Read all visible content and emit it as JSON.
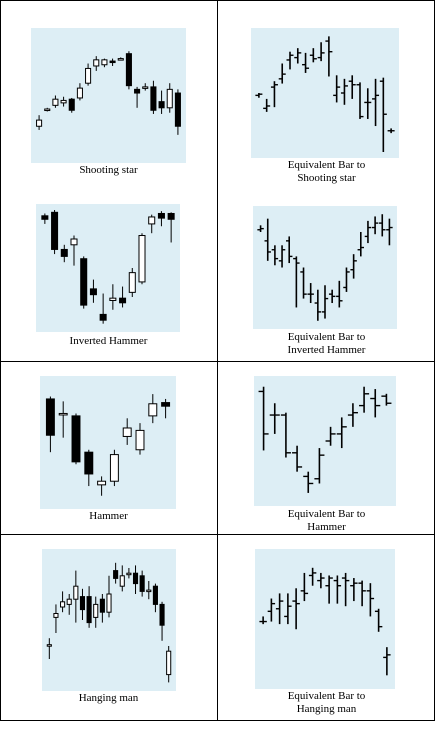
{
  "panels": [
    {
      "id": "shooting-star-candle",
      "caption": [
        "Shooting star"
      ],
      "kind": "candle",
      "bg": "#ddeef5",
      "ylim": [
        0,
        100
      ],
      "bars": [
        {
          "o": 25,
          "c": 30,
          "h": 34,
          "l": 22
        },
        {
          "o": 38,
          "c": 39,
          "h": 40,
          "l": 37
        },
        {
          "o": 42,
          "c": 47,
          "h": 50,
          "l": 40
        },
        {
          "o": 44,
          "c": 46,
          "h": 49,
          "l": 41
        },
        {
          "o": 47,
          "c": 38,
          "h": 48,
          "l": 36
        },
        {
          "o": 48,
          "c": 56,
          "h": 60,
          "l": 46
        },
        {
          "o": 60,
          "c": 72,
          "h": 76,
          "l": 58
        },
        {
          "o": 74,
          "c": 79,
          "h": 82,
          "l": 70
        },
        {
          "o": 75,
          "c": 79,
          "h": 80,
          "l": 73
        },
        {
          "o": 78,
          "c": 77,
          "h": 80,
          "l": 74
        },
        {
          "o": 80,
          "c": 80,
          "h": 81,
          "l": 79
        },
        {
          "o": 84,
          "c": 58,
          "h": 86,
          "l": 55
        },
        {
          "o": 55,
          "c": 52,
          "h": 57,
          "l": 40
        },
        {
          "o": 57,
          "c": 57,
          "h": 60,
          "l": 54
        },
        {
          "o": 57,
          "c": 38,
          "h": 62,
          "l": 35
        },
        {
          "o": 45,
          "c": 40,
          "h": 54,
          "l": 35
        },
        {
          "o": 40,
          "c": 55,
          "h": 60,
          "l": 36
        },
        {
          "o": 52,
          "c": 25,
          "h": 55,
          "l": 18
        }
      ]
    },
    {
      "id": "shooting-star-bar",
      "caption": [
        "Equivalent Bar to",
        "Shooting star"
      ],
      "kind": "ohlc",
      "bg": "#ddeef5",
      "ylim": [
        0,
        100
      ],
      "bars": [
        {
          "o": 48,
          "c": 49,
          "h": 50,
          "l": 46
        },
        {
          "o": 37,
          "c": 39,
          "h": 45,
          "l": 34
        },
        {
          "o": 55,
          "c": 57,
          "h": 60,
          "l": 38
        },
        {
          "o": 62,
          "c": 66,
          "h": 75,
          "l": 58
        },
        {
          "o": 78,
          "c": 82,
          "h": 85,
          "l": 70
        },
        {
          "o": 80,
          "c": 84,
          "h": 88,
          "l": 75
        },
        {
          "o": 74,
          "c": 71,
          "h": 84,
          "l": 67
        },
        {
          "o": 82,
          "c": 79,
          "h": 88,
          "l": 76
        },
        {
          "o": 80,
          "c": 84,
          "h": 93,
          "l": 77
        },
        {
          "o": 94,
          "c": 85,
          "h": 98,
          "l": 64
        },
        {
          "o": 48,
          "c": 55,
          "h": 65,
          "l": 42
        },
        {
          "o": 50,
          "c": 56,
          "h": 62,
          "l": 40
        },
        {
          "o": 60,
          "c": 57,
          "h": 65,
          "l": 45
        },
        {
          "o": 57,
          "c": 30,
          "h": 59,
          "l": 28
        },
        {
          "o": 42,
          "c": 42,
          "h": 54,
          "l": 28
        },
        {
          "o": 45,
          "c": 48,
          "h": 62,
          "l": 22
        },
        {
          "o": 60,
          "c": 32,
          "h": 63,
          "l": 0
        },
        {
          "o": 18,
          "c": 18,
          "h": 20,
          "l": 16
        }
      ]
    },
    {
      "id": "inverted-hammer-candle",
      "caption": [
        "Inverted Hammer"
      ],
      "kind": "candle",
      "bg": "#ddeef5",
      "ylim": [
        0,
        100
      ],
      "bars": [
        {
          "o": 95,
          "c": 92,
          "h": 97,
          "l": 88
        },
        {
          "o": 98,
          "c": 66,
          "h": 100,
          "l": 62
        },
        {
          "o": 66,
          "c": 60,
          "h": 70,
          "l": 55
        },
        {
          "o": 70,
          "c": 75,
          "h": 78,
          "l": 52
        },
        {
          "o": 58,
          "c": 18,
          "h": 60,
          "l": 15
        },
        {
          "o": 32,
          "c": 27,
          "h": 40,
          "l": 20
        },
        {
          "o": 10,
          "c": 5,
          "h": 28,
          "l": 2
        },
        {
          "o": 22,
          "c": 24,
          "h": 36,
          "l": 14
        },
        {
          "o": 24,
          "c": 20,
          "h": 34,
          "l": 16
        },
        {
          "o": 29,
          "c": 46,
          "h": 50,
          "l": 25
        },
        {
          "o": 38,
          "c": 78,
          "h": 80,
          "l": 36
        },
        {
          "o": 88,
          "c": 94,
          "h": 96,
          "l": 80
        },
        {
          "o": 97,
          "c": 93,
          "h": 99,
          "l": 86
        },
        {
          "o": 97,
          "c": 92,
          "h": 98,
          "l": 72
        }
      ]
    },
    {
      "id": "inverted-hammer-bar",
      "caption": [
        "Equivalent Bar to",
        "Inverted Hammer"
      ],
      "kind": "ohlc",
      "bg": "#ddeef5",
      "ylim": [
        0,
        100
      ],
      "bars": [
        {
          "o": 84,
          "c": 85,
          "h": 88,
          "l": 82
        },
        {
          "o": 74,
          "c": 64,
          "h": 94,
          "l": 56
        },
        {
          "o": 66,
          "c": 58,
          "h": 70,
          "l": 52
        },
        {
          "o": 56,
          "c": 66,
          "h": 70,
          "l": 50
        },
        {
          "o": 74,
          "c": 60,
          "h": 78,
          "l": 54
        },
        {
          "o": 58,
          "c": 54,
          "h": 60,
          "l": 14
        },
        {
          "o": 46,
          "c": 26,
          "h": 50,
          "l": 22
        },
        {
          "o": 26,
          "c": 26,
          "h": 36,
          "l": 18
        },
        {
          "o": 18,
          "c": 10,
          "h": 30,
          "l": 2
        },
        {
          "o": 10,
          "c": 22,
          "h": 34,
          "l": 4
        },
        {
          "o": 26,
          "c": 24,
          "h": 30,
          "l": 18
        },
        {
          "o": 24,
          "c": 20,
          "h": 38,
          "l": 14
        },
        {
          "o": 32,
          "c": 46,
          "h": 50,
          "l": 28
        },
        {
          "o": 48,
          "c": 56,
          "h": 62,
          "l": 40
        },
        {
          "o": 66,
          "c": 68,
          "h": 82,
          "l": 60
        },
        {
          "o": 78,
          "c": 86,
          "h": 92,
          "l": 72
        },
        {
          "o": 86,
          "c": 90,
          "h": 96,
          "l": 80
        },
        {
          "o": 90,
          "c": 84,
          "h": 98,
          "l": 78
        },
        {
          "o": 84,
          "c": 86,
          "h": 94,
          "l": 70
        }
      ]
    },
    {
      "id": "hammer-candle",
      "caption": [
        "Hammer"
      ],
      "kind": "candle",
      "bg": "#ddeef5",
      "ylim": [
        0,
        100
      ],
      "bars": [
        {
          "o": 86,
          "c": 56,
          "h": 88,
          "l": 42
        },
        {
          "o": 74,
          "c": 74,
          "h": 84,
          "l": 54
        },
        {
          "o": 72,
          "c": 34,
          "h": 74,
          "l": 32
        },
        {
          "o": 42,
          "c": 24,
          "h": 44,
          "l": 14
        },
        {
          "o": 15,
          "c": 18,
          "h": 22,
          "l": 6
        },
        {
          "o": 18,
          "c": 40,
          "h": 44,
          "l": 14
        },
        {
          "o": 55,
          "c": 62,
          "h": 70,
          "l": 48
        },
        {
          "o": 44,
          "c": 60,
          "h": 66,
          "l": 40
        },
        {
          "o": 72,
          "c": 82,
          "h": 90,
          "l": 66
        },
        {
          "o": 83,
          "c": 80,
          "h": 86,
          "l": 70
        }
      ]
    },
    {
      "id": "hammer-bar",
      "caption": [
        "Equivalent Bar to",
        "Hammer"
      ],
      "kind": "ohlc",
      "bg": "#ddeef5",
      "ylim": [
        0,
        100
      ],
      "bars": [
        {
          "o": 92,
          "c": 56,
          "h": 96,
          "l": 42
        },
        {
          "o": 72,
          "c": 72,
          "h": 82,
          "l": 56
        },
        {
          "o": 72,
          "c": 40,
          "h": 74,
          "l": 36
        },
        {
          "o": 40,
          "c": 28,
          "h": 46,
          "l": 24
        },
        {
          "o": 20,
          "c": 14,
          "h": 24,
          "l": 6
        },
        {
          "o": 18,
          "c": 38,
          "h": 44,
          "l": 14
        },
        {
          "o": 50,
          "c": 56,
          "h": 62,
          "l": 46
        },
        {
          "o": 56,
          "c": 62,
          "h": 70,
          "l": 44
        },
        {
          "o": 72,
          "c": 74,
          "h": 82,
          "l": 62
        },
        {
          "o": 80,
          "c": 90,
          "h": 96,
          "l": 74
        },
        {
          "o": 86,
          "c": 80,
          "h": 94,
          "l": 70
        },
        {
          "o": 88,
          "c": 82,
          "h": 90,
          "l": 80
        }
      ]
    },
    {
      "id": "hanging-man-candle",
      "caption": [
        "Hanging man"
      ],
      "kind": "candle",
      "bg": "#ddeef5",
      "ylim": [
        0,
        100
      ],
      "bars": [
        {
          "o": 30,
          "c": 31,
          "h": 36,
          "l": 20
        },
        {
          "o": 52,
          "c": 55,
          "h": 62,
          "l": 40
        },
        {
          "o": 60,
          "c": 64,
          "h": 72,
          "l": 56
        },
        {
          "o": 62,
          "c": 66,
          "h": 70,
          "l": 54
        },
        {
          "o": 66,
          "c": 76,
          "h": 88,
          "l": 48
        },
        {
          "o": 68,
          "c": 58,
          "h": 74,
          "l": 50
        },
        {
          "o": 68,
          "c": 48,
          "h": 76,
          "l": 44
        },
        {
          "o": 52,
          "c": 62,
          "h": 68,
          "l": 44
        },
        {
          "o": 66,
          "c": 56,
          "h": 70,
          "l": 48
        },
        {
          "o": 56,
          "c": 70,
          "h": 84,
          "l": 52
        },
        {
          "o": 88,
          "c": 82,
          "h": 94,
          "l": 78
        },
        {
          "o": 76,
          "c": 84,
          "h": 92,
          "l": 72
        },
        {
          "o": 86,
          "c": 86,
          "h": 90,
          "l": 82
        },
        {
          "o": 86,
          "c": 78,
          "h": 92,
          "l": 70
        },
        {
          "o": 84,
          "c": 72,
          "h": 88,
          "l": 68
        },
        {
          "o": 72,
          "c": 73,
          "h": 80,
          "l": 66
        },
        {
          "o": 76,
          "c": 62,
          "h": 78,
          "l": 56
        },
        {
          "o": 62,
          "c": 46,
          "h": 64,
          "l": 34
        },
        {
          "o": 8,
          "c": 26,
          "h": 30,
          "l": 2
        }
      ]
    },
    {
      "id": "hanging-man-bar",
      "caption": [
        "Equivalent Bar to",
        "Hanging man"
      ],
      "kind": "ohlc",
      "bg": "#ddeef5",
      "ylim": [
        0,
        100
      ],
      "bars": [
        {
          "o": 48,
          "c": 48,
          "h": 52,
          "l": 46
        },
        {
          "o": 56,
          "c": 62,
          "h": 66,
          "l": 48
        },
        {
          "o": 58,
          "c": 64,
          "h": 70,
          "l": 46
        },
        {
          "o": 52,
          "c": 60,
          "h": 70,
          "l": 46
        },
        {
          "o": 64,
          "c": 62,
          "h": 74,
          "l": 42
        },
        {
          "o": 72,
          "c": 70,
          "h": 86,
          "l": 64
        },
        {
          "o": 84,
          "c": 86,
          "h": 90,
          "l": 76
        },
        {
          "o": 80,
          "c": 82,
          "h": 86,
          "l": 74
        },
        {
          "o": 76,
          "c": 82,
          "h": 84,
          "l": 62
        },
        {
          "o": 80,
          "c": 76,
          "h": 84,
          "l": 62
        },
        {
          "o": 82,
          "c": 80,
          "h": 86,
          "l": 60
        },
        {
          "o": 76,
          "c": 78,
          "h": 82,
          "l": 64
        },
        {
          "o": 78,
          "c": 72,
          "h": 80,
          "l": 60
        },
        {
          "o": 72,
          "c": 66,
          "h": 78,
          "l": 52
        },
        {
          "o": 56,
          "c": 44,
          "h": 58,
          "l": 40
        },
        {
          "o": 20,
          "c": 22,
          "h": 28,
          "l": 6
        }
      ]
    }
  ]
}
